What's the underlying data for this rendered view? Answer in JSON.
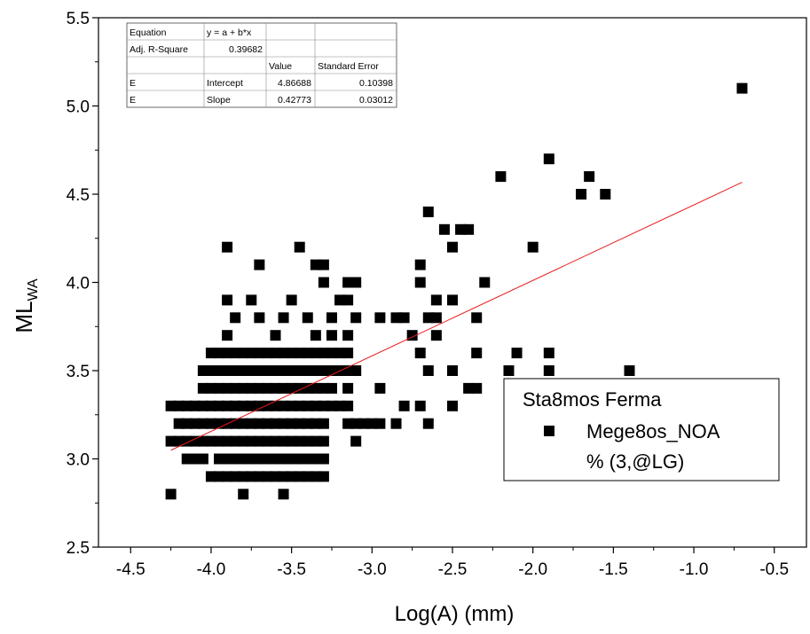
{
  "chart_data": {
    "type": "scatter",
    "title": "",
    "xlabel": "Log(A) (mm)",
    "ylabel": {
      "main": "ML",
      "sub": "WA"
    },
    "xlim": [
      -4.7,
      -0.3
    ],
    "ylim": [
      2.5,
      5.5
    ],
    "x_ticks": [
      -4.5,
      -4.0,
      -3.5,
      -3.0,
      -2.5,
      -2.0,
      -1.5,
      -1.0,
      -0.5
    ],
    "x_tick_labels": [
      "-4.5",
      "-4.0",
      "-3.5",
      "-3.0",
      "-2.5",
      "-2.0",
      "-1.5",
      "-1.0",
      "-0.5"
    ],
    "y_ticks": [
      2.5,
      3.0,
      3.5,
      4.0,
      4.5,
      5.0,
      5.5
    ],
    "y_tick_labels": [
      "2.5",
      "3.0",
      "3.5",
      "4.0",
      "4.5",
      "5.0",
      "5.5"
    ],
    "grid": false,
    "legend": {
      "position": "bottom-right",
      "title": "Sta8mos Ferma",
      "entries": [
        "Mege8os_NOA",
        "% (3,@LG)"
      ]
    },
    "stats_table": {
      "rows": [
        [
          "Equation",
          "y = a + b*x",
          "",
          ""
        ],
        [
          "Adj. R-Square",
          "0.39682",
          "",
          ""
        ],
        [
          "",
          "",
          "Value",
          "Standard Error"
        ],
        [
          "E",
          "Intercept",
          "4.86688",
          "0.10398"
        ],
        [
          "E",
          "Slope",
          "0.42773",
          "0.03012"
        ]
      ]
    },
    "fit": {
      "intercept": 4.86688,
      "slope": 0.42773,
      "x_range": [
        -4.25,
        -0.7
      ],
      "color": "#e8191c"
    },
    "series": [
      {
        "marker": "square",
        "color": "#000000",
        "bands": [
          {
            "y": 2.8,
            "x": [
              -4.25,
              -3.8,
              -3.55
            ]
          },
          {
            "y": 2.9,
            "segments": [
              [
                -4.0,
                -3.3
              ]
            ]
          },
          {
            "y": 3.0,
            "segments": [
              [
                -4.15,
                -4.05
              ],
              [
                -3.95,
                -3.85
              ],
              [
                -3.8,
                -3.3
              ]
            ]
          },
          {
            "y": 3.1,
            "segments": [
              [
                -4.25,
                -3.3
              ],
              [
                -3.1,
                -3.1
              ]
            ]
          },
          {
            "y": 3.2,
            "segments": [
              [
                -4.2,
                -3.3
              ],
              [
                -3.15,
                -2.95
              ]
            ],
            "x": [
              -2.85,
              -2.65
            ]
          },
          {
            "y": 3.3,
            "segments": [
              [
                -4.25,
                -3.15
              ]
            ],
            "x": [
              -2.8,
              -2.7,
              -2.5
            ]
          },
          {
            "y": 3.4,
            "segments": [
              [
                -4.05,
                -3.25
              ]
            ],
            "x": [
              -3.15,
              -2.95,
              -2.4,
              -2.35
            ]
          },
          {
            "y": 3.5,
            "segments": [
              [
                -4.05,
                -3.1
              ]
            ],
            "x": [
              -2.65,
              -2.5,
              -2.15,
              -1.9,
              -1.4
            ]
          },
          {
            "y": 3.6,
            "segments": [
              [
                -4.0,
                -3.2
              ]
            ],
            "x": [
              -3.15,
              -2.7,
              -2.35,
              -2.1,
              -1.9
            ]
          },
          {
            "y": 3.7,
            "x": [
              -3.9,
              -3.6,
              -3.35,
              -3.25,
              -3.15,
              -2.75,
              -2.6
            ]
          },
          {
            "y": 3.8,
            "x": [
              -3.85,
              -3.7,
              -3.55,
              -3.4,
              -3.25,
              -3.1,
              -2.95,
              -2.85,
              -2.8,
              -2.65,
              -2.6,
              -2.35
            ]
          },
          {
            "y": 3.9,
            "x": [
              -3.9,
              -3.75,
              -3.5,
              -3.2,
              -3.15,
              -2.6,
              -2.5
            ]
          },
          {
            "y": 4.0,
            "x": [
              -3.3,
              -3.15,
              -3.1,
              -2.7,
              -2.3
            ]
          },
          {
            "y": 4.1,
            "x": [
              -3.7,
              -3.35,
              -3.3,
              -2.7
            ]
          },
          {
            "y": 4.2,
            "x": [
              -3.9,
              -3.45,
              -2.5,
              -2.0
            ]
          },
          {
            "y": 4.3,
            "x": [
              -2.55,
              -2.45,
              -2.4
            ]
          },
          {
            "y": 4.4,
            "x": [
              -2.65
            ]
          },
          {
            "y": 4.5,
            "x": [
              -1.7,
              -1.55
            ]
          },
          {
            "y": 4.6,
            "x": [
              -2.2,
              -1.65
            ]
          },
          {
            "y": 4.7,
            "x": [
              -1.9
            ]
          },
          {
            "y": 5.1,
            "x": [
              -0.7
            ]
          }
        ]
      }
    ]
  }
}
